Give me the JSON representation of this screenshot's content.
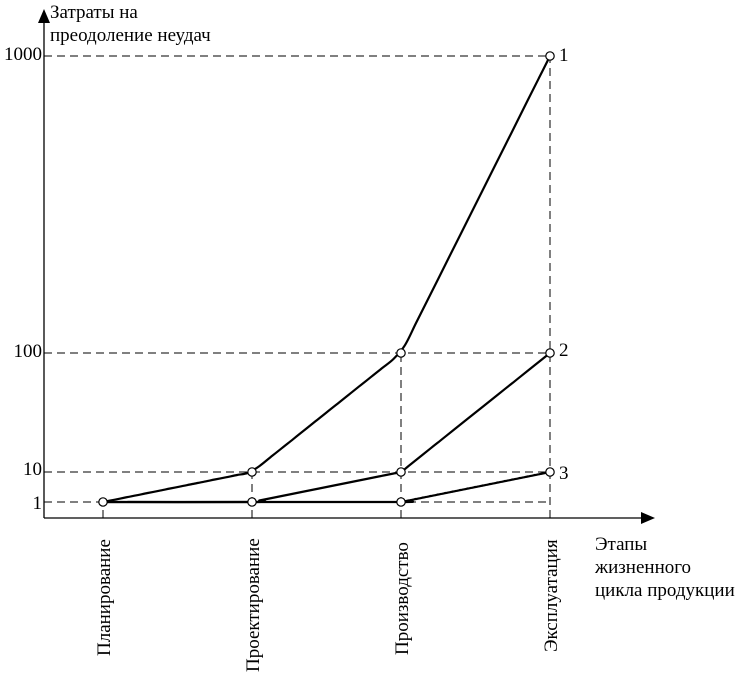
{
  "chart_data": {
    "type": "line",
    "ylabel": [
      "Затраты на",
      "преодоление неудач"
    ],
    "xlabel": [
      "Этапы",
      "жизненного",
      "цикла продукции"
    ],
    "categories": [
      "Планирование",
      "Проектирование",
      "Производство",
      "Эксплуатация"
    ],
    "y_ticks": [
      "1",
      "10",
      "100",
      "1000"
    ],
    "series": [
      {
        "name": "1",
        "values": [
          1,
          10,
          100,
          1000
        ]
      },
      {
        "name": "2",
        "values": [
          1,
          1,
          10,
          100
        ]
      },
      {
        "name": "3",
        "values": [
          1,
          1,
          1,
          10
        ]
      }
    ],
    "grid": false
  }
}
